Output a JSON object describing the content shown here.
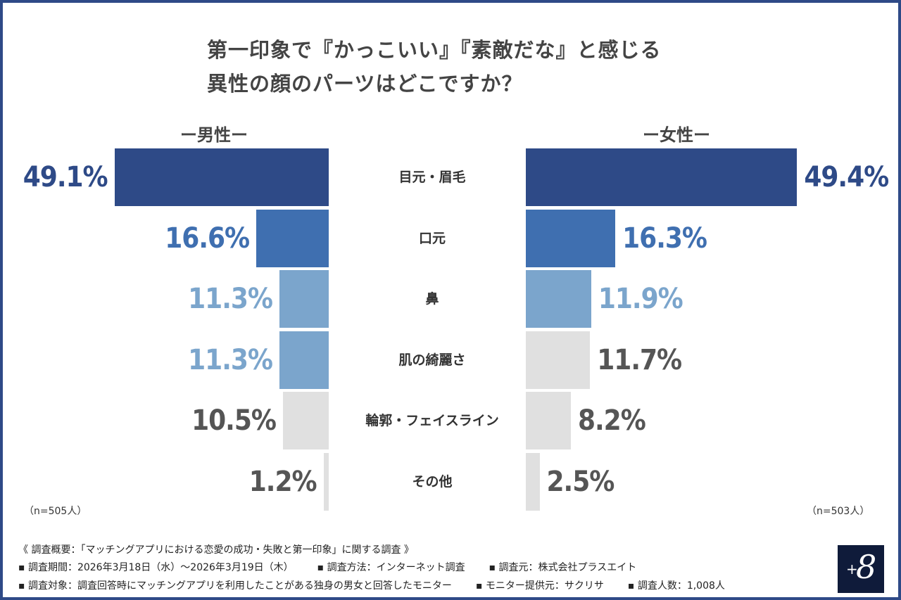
{
  "title_line1": "第一印象で『かっこいい』『素敵だな』と感じる",
  "title_line2": "異性の顔のパーツはどこですか？",
  "chart_data": {
    "type": "bar",
    "orientation": "horizontal-butterfly",
    "categories": [
      "目元・眉毛",
      "口元",
      "鼻",
      "肌の綺麗さ",
      "輪郭・フェイスライン",
      "その他"
    ],
    "series": [
      {
        "name": "ー男性ー",
        "values": [
          49.1,
          16.6,
          11.3,
          11.3,
          10.5,
          1.2
        ],
        "labels": [
          "49.1%",
          "16.6%",
          "11.3%",
          "11.3%",
          "10.5%",
          "1.2%"
        ],
        "n_label": "（n=505人）"
      },
      {
        "name": "ー女性ー",
        "values": [
          49.4,
          16.3,
          11.9,
          11.7,
          8.2,
          2.5
        ],
        "labels": [
          "49.4%",
          "16.3%",
          "11.9%",
          "11.7%",
          "8.2%",
          "2.5%"
        ],
        "n_label": "（n=503人）"
      }
    ],
    "colors": {
      "rank1": "#2e4a87",
      "rank2": "#3f6fb0",
      "rank3": "#7ba5cc",
      "other": "#e0e0e0",
      "other_text": "#555555"
    },
    "male_colors": [
      "rank1",
      "rank2",
      "rank3",
      "rank3",
      "other",
      "other"
    ],
    "female_colors": [
      "rank1",
      "rank2",
      "rank3",
      "other",
      "other",
      "other"
    ]
  },
  "footer": {
    "summary": "《 調査概要：「マッチングアプリにおける恋愛の成功・失敗と第一印象」に関する調査 》",
    "period": "▪ 調査期間：2026年3月18日（水）～2026年3月19日（木）",
    "method": "▪ 調査方法：インターネット調査",
    "source": "▪ 調査元：株式会社プラスエイト",
    "target": "▪ 調査対象：調査回答時にマッチングアプリを利用したことがある独身の男女と回答したモニター",
    "provider": "▪ モニター提供元：サクリサ",
    "count": "▪ 調査人数：1,008人"
  },
  "logo": {
    "plus": "+",
    "eight": "8"
  }
}
